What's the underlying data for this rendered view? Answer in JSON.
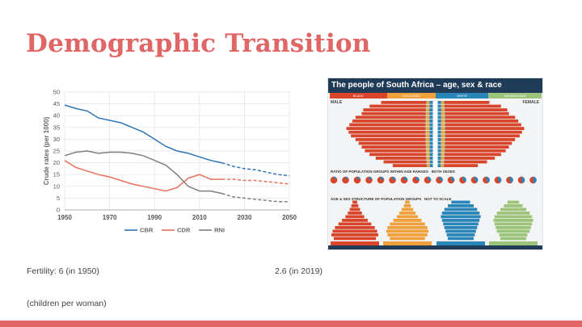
{
  "slide": {
    "title": "Demographic Transition",
    "fertility_text": "Fertility: 6 (in 1950)",
    "fertility_value_2019": "2.6 (in 2019)",
    "children_note": "(children per woman)"
  },
  "colors": {
    "title": "#e06666",
    "accent_bar": "#e06666",
    "cbr": "#2e75b6",
    "cdr": "#e8705c",
    "rni": "#7f7f7f"
  },
  "chart_data": {
    "type": "line",
    "ylabel": "Crude rates (per 1000)",
    "xlabel": "",
    "ylim": [
      0,
      50
    ],
    "xlim": [
      1950,
      2050
    ],
    "x_ticks": [
      1950,
      1970,
      1990,
      2010,
      2030,
      2050
    ],
    "y_ticks": [
      0,
      5,
      10,
      15,
      20,
      25,
      30,
      35,
      40,
      45,
      50
    ],
    "grid": true,
    "legend_position": "bottom",
    "projection_start": 2020,
    "series": [
      {
        "name": "CBR",
        "color": "#2e75b6",
        "points": [
          [
            1950,
            44.5
          ],
          [
            1955,
            43
          ],
          [
            1960,
            42
          ],
          [
            1965,
            39
          ],
          [
            1970,
            38
          ],
          [
            1975,
            37
          ],
          [
            1980,
            35
          ],
          [
            1985,
            33
          ],
          [
            1990,
            30
          ],
          [
            1995,
            27
          ],
          [
            2000,
            25
          ],
          [
            2005,
            24
          ],
          [
            2010,
            22.5
          ],
          [
            2015,
            21
          ],
          [
            2020,
            20
          ],
          [
            2025,
            18.5
          ],
          [
            2030,
            17.5
          ],
          [
            2035,
            17
          ],
          [
            2040,
            16
          ],
          [
            2045,
            15
          ],
          [
            2050,
            14.5
          ]
        ]
      },
      {
        "name": "CDR",
        "color": "#e8705c",
        "points": [
          [
            1950,
            21
          ],
          [
            1955,
            18
          ],
          [
            1960,
            16.5
          ],
          [
            1965,
            15
          ],
          [
            1970,
            14
          ],
          [
            1975,
            12.5
          ],
          [
            1980,
            11
          ],
          [
            1985,
            10
          ],
          [
            1990,
            9
          ],
          [
            1995,
            8
          ],
          [
            2000,
            9.5
          ],
          [
            2005,
            13.5
          ],
          [
            2010,
            15
          ],
          [
            2015,
            13
          ],
          [
            2020,
            13
          ],
          [
            2025,
            13
          ],
          [
            2030,
            12.5
          ],
          [
            2035,
            12.5
          ],
          [
            2040,
            12
          ],
          [
            2045,
            11.5
          ],
          [
            2050,
            11
          ]
        ]
      },
      {
        "name": "RNI",
        "color": "#7f7f7f",
        "points": [
          [
            1950,
            23
          ],
          [
            1955,
            24.5
          ],
          [
            1960,
            25
          ],
          [
            1965,
            24
          ],
          [
            1970,
            24.5
          ],
          [
            1975,
            24.5
          ],
          [
            1980,
            24
          ],
          [
            1985,
            23
          ],
          [
            1990,
            21
          ],
          [
            1995,
            19
          ],
          [
            2000,
            15
          ],
          [
            2005,
            10
          ],
          [
            2010,
            8
          ],
          [
            2015,
            8
          ],
          [
            2020,
            7
          ],
          [
            2025,
            5.5
          ],
          [
            2030,
            5
          ],
          [
            2035,
            4.5
          ],
          [
            2040,
            4
          ],
          [
            2045,
            3.5
          ],
          [
            2050,
            3.5
          ]
        ]
      }
    ]
  },
  "infographic": {
    "title": "The people of South Africa – age, sex & race",
    "male_label": "MALE",
    "female_label": "FEMALE",
    "groups": [
      {
        "name": "BLACK",
        "color": "#d9452b"
      },
      {
        "name": "COLOURED",
        "color": "#f0a13c"
      },
      {
        "name": "WHITE",
        "color": "#2a86b8"
      },
      {
        "name": "INDIAN/ASIAN",
        "color": "#9bc47a"
      }
    ],
    "ratio_section": "RATIO OF POPULATION GROUPS WITHIN AGE RANGES",
    "ratio_sub": "BOTH SEXES",
    "age_section": "AGE & SEX STRUCTURE OF POPULATION GROUPS",
    "age_sub": "NOT TO SCALE",
    "pyramid_shares": [
      [
        0.55,
        0.04,
        0.06,
        0.02
      ],
      [
        0.7,
        0.05,
        0.06,
        0.03
      ],
      [
        0.78,
        0.06,
        0.07,
        0.03
      ],
      [
        0.8,
        0.07,
        0.07,
        0.03
      ],
      [
        0.88,
        0.08,
        0.07,
        0.03
      ],
      [
        0.92,
        0.09,
        0.07,
        0.03
      ],
      [
        0.96,
        0.1,
        0.06,
        0.03
      ],
      [
        1.0,
        0.1,
        0.06,
        0.03
      ],
      [
        0.97,
        0.1,
        0.06,
        0.03
      ],
      [
        0.94,
        0.1,
        0.06,
        0.03
      ],
      [
        0.88,
        0.09,
        0.06,
        0.03
      ],
      [
        0.84,
        0.08,
        0.06,
        0.03
      ],
      [
        0.8,
        0.08,
        0.06,
        0.03
      ],
      [
        0.76,
        0.07,
        0.06,
        0.03
      ],
      [
        0.7,
        0.07,
        0.05,
        0.03
      ],
      [
        0.62,
        0.06,
        0.05,
        0.02
      ],
      [
        0.52,
        0.05,
        0.04,
        0.02
      ],
      [
        0.4,
        0.04,
        0.04,
        0.02
      ]
    ]
  }
}
